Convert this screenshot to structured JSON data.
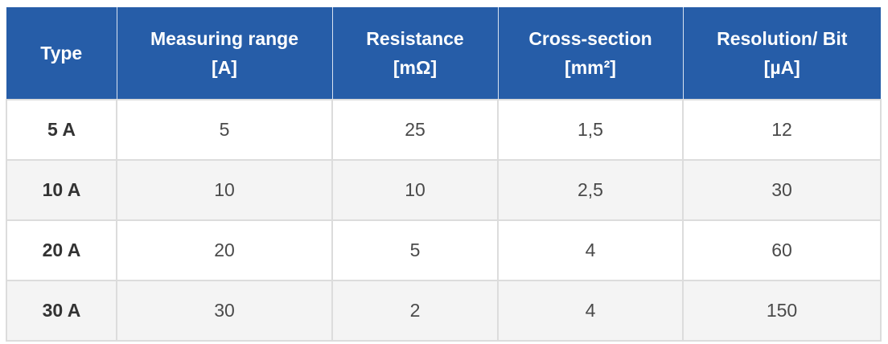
{
  "table": {
    "headers": [
      {
        "line1": "Type",
        "line2": ""
      },
      {
        "line1": "Measuring range",
        "line2": "[A]"
      },
      {
        "line1": "Resistance",
        "line2": "[mΩ]"
      },
      {
        "line1": "Cross-section",
        "line2": "[mm²]"
      },
      {
        "line1": "Resolution/ Bit",
        "line2": "[µA]"
      }
    ],
    "rows": [
      {
        "type": "5 A",
        "range": "5",
        "resistance": "25",
        "cross_section": "1,5",
        "resolution": "12"
      },
      {
        "type": "10 A",
        "range": "10",
        "resistance": "10",
        "cross_section": "2,5",
        "resolution": "30"
      },
      {
        "type": "20 A",
        "range": "20",
        "resistance": "5",
        "cross_section": "4",
        "resolution": "60"
      },
      {
        "type": "30 A",
        "range": "30",
        "resistance": "2",
        "cross_section": "4",
        "resolution": "150"
      }
    ]
  },
  "colors": {
    "header_bg": "#265da8",
    "header_text": "#ffffff",
    "cell_text": "#4a4a4a",
    "stripe_bg": "#f4f4f4",
    "border": "#dcdcdc"
  }
}
